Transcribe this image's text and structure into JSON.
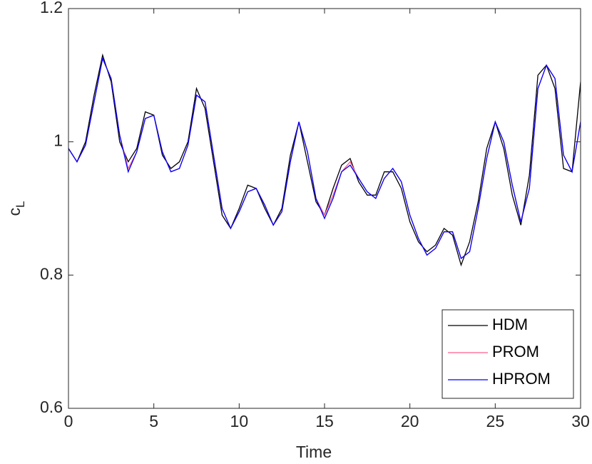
{
  "chart_data": {
    "type": "line",
    "xlabel": "Time",
    "ylabel": "c",
    "ylabel_subscript": "L",
    "x": [
      0,
      0.5,
      1,
      1.5,
      2,
      2.5,
      3,
      3.5,
      4,
      4.5,
      5,
      5.5,
      6,
      6.5,
      7,
      7.5,
      8,
      8.5,
      9,
      9.5,
      10,
      10.5,
      11,
      11.5,
      12,
      12.5,
      13,
      13.5,
      14,
      14.5,
      15,
      15.5,
      16,
      16.5,
      17,
      17.5,
      18,
      18.5,
      19,
      19.5,
      20,
      20.5,
      21,
      21.5,
      22,
      22.5,
      23,
      23.5,
      24,
      24.5,
      25,
      25.5,
      26,
      26.5,
      27,
      27.5,
      28,
      28.5,
      29,
      29.5,
      30
    ],
    "series": [
      {
        "name": "HDM",
        "color": "#000000",
        "values": [
          0.99,
          0.97,
          1.0,
          1.07,
          1.13,
          1.09,
          1.0,
          0.97,
          0.99,
          1.045,
          1.04,
          0.98,
          0.96,
          0.97,
          1.0,
          1.08,
          1.05,
          0.97,
          0.89,
          0.87,
          0.9,
          0.935,
          0.93,
          0.9,
          0.875,
          0.9,
          0.98,
          1.03,
          0.97,
          0.91,
          0.89,
          0.93,
          0.965,
          0.975,
          0.94,
          0.92,
          0.92,
          0.955,
          0.955,
          0.93,
          0.88,
          0.85,
          0.835,
          0.845,
          0.87,
          0.86,
          0.815,
          0.85,
          0.91,
          0.99,
          1.03,
          0.99,
          0.92,
          0.875,
          0.95,
          1.1,
          1.115,
          1.08,
          0.96,
          0.955,
          1.09
        ]
      },
      {
        "name": "PROM",
        "color": "#ff5f8f",
        "values": [
          0.99,
          0.97,
          0.995,
          1.06,
          1.125,
          1.095,
          1.01,
          0.96,
          0.985,
          1.035,
          1.04,
          0.985,
          0.955,
          0.96,
          0.995,
          1.07,
          1.06,
          0.98,
          0.9,
          0.87,
          0.895,
          0.925,
          0.93,
          0.905,
          0.875,
          0.895,
          0.97,
          1.03,
          0.985,
          0.915,
          0.89,
          0.92,
          0.955,
          0.97,
          0.945,
          0.925,
          0.915,
          0.945,
          0.96,
          0.94,
          0.89,
          0.855,
          0.83,
          0.84,
          0.865,
          0.865,
          0.825,
          0.835,
          0.9,
          0.975,
          1.03,
          1.0,
          0.935,
          0.88,
          0.93,
          1.08,
          1.115,
          1.095,
          0.98,
          0.955,
          1.03
        ]
      },
      {
        "name": "HPROM",
        "color": "#0000ff",
        "values": [
          0.99,
          0.97,
          0.995,
          1.06,
          1.125,
          1.095,
          1.01,
          0.955,
          0.985,
          1.035,
          1.04,
          0.985,
          0.955,
          0.96,
          0.995,
          1.07,
          1.06,
          0.98,
          0.9,
          0.87,
          0.895,
          0.925,
          0.93,
          0.905,
          0.875,
          0.895,
          0.97,
          1.03,
          0.985,
          0.915,
          0.885,
          0.915,
          0.955,
          0.965,
          0.945,
          0.925,
          0.915,
          0.945,
          0.96,
          0.94,
          0.89,
          0.855,
          0.83,
          0.84,
          0.865,
          0.865,
          0.825,
          0.835,
          0.9,
          0.975,
          1.03,
          1.0,
          0.935,
          0.88,
          0.93,
          1.08,
          1.115,
          1.095,
          0.98,
          0.955,
          1.03
        ]
      }
    ],
    "xlim": [
      0,
      30
    ],
    "xticks": [
      0,
      5,
      10,
      15,
      20,
      25,
      30
    ],
    "ylim": [
      0.6,
      1.2
    ],
    "yticks": [
      0.6,
      0.8,
      1,
      1.2
    ],
    "legend": "lower right"
  }
}
